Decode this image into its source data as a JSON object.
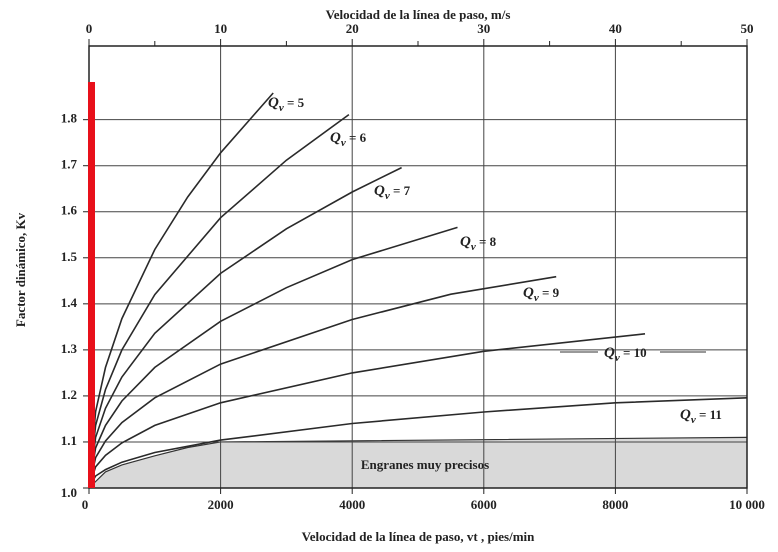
{
  "chart_data": {
    "type": "line",
    "title": "Velocidad de la línea de paso, m/s",
    "xlabel": "Velocidad de la línea de paso, vt , pies/min",
    "ylabel": "Factor dinámico, Kv",
    "xlim": [
      0,
      10000
    ],
    "xticks": [
      0,
      2000,
      4000,
      6000,
      8000,
      {
        "value": 10000,
        "label": "10 000"
      }
    ],
    "x2lim": [
      0,
      50
    ],
    "x2ticks": [
      0,
      10,
      20,
      30,
      40,
      50
    ],
    "x2minor": [
      5,
      15,
      25,
      35,
      45
    ],
    "ylim": [
      1.0,
      1.96
    ],
    "yticks": [
      1.0,
      1.1,
      1.2,
      1.3,
      1.4,
      1.5,
      1.6,
      1.7,
      1.8
    ],
    "grid": true,
    "series": [
      {
        "name": "Qv = 5",
        "color": "#2a2a2a",
        "x": [
          0,
          100,
          250,
          500,
          1000,
          1500,
          2000,
          2800
        ],
        "values": [
          1.0,
          1.166,
          1.262,
          1.368,
          1.518,
          1.632,
          1.728,
          1.858
        ]
      },
      {
        "name": "Qv = 6",
        "color": "#2a2a2a",
        "x": [
          0,
          100,
          250,
          500,
          1000,
          2000,
          3000,
          3950
        ],
        "values": [
          1.0,
          1.136,
          1.214,
          1.3,
          1.42,
          1.587,
          1.712,
          1.811
        ]
      },
      {
        "name": "Qv = 7",
        "color": "#2a2a2a",
        "x": [
          0,
          100,
          250,
          500,
          1000,
          2000,
          3000,
          4000,
          4750
        ],
        "values": [
          1.0,
          1.11,
          1.173,
          1.241,
          1.336,
          1.466,
          1.563,
          1.643,
          1.696
        ]
      },
      {
        "name": "Qv = 8",
        "color": "#2a2a2a",
        "x": [
          0,
          100,
          250,
          500,
          1000,
          2000,
          3000,
          4000,
          5600
        ],
        "values": [
          1.0,
          1.087,
          1.136,
          1.189,
          1.262,
          1.362,
          1.435,
          1.496,
          1.566
        ]
      },
      {
        "name": "Qv = 9",
        "color": "#2a2a2a",
        "x": [
          0,
          100,
          250,
          500,
          1000,
          2000,
          4000,
          5500,
          7100
        ],
        "values": [
          1.0,
          1.066,
          1.102,
          1.142,
          1.196,
          1.269,
          1.366,
          1.421,
          1.459
        ]
      },
      {
        "name": "Qv = 10",
        "color": "#2a2a2a",
        "x": [
          0,
          100,
          250,
          500,
          1000,
          2000,
          4000,
          6000,
          8450
        ],
        "values": [
          1.0,
          1.046,
          1.071,
          1.098,
          1.136,
          1.185,
          1.25,
          1.297,
          1.335
        ]
      },
      {
        "name": "Qv = 11",
        "color": "#2a2a2a",
        "x": [
          0,
          100,
          250,
          500,
          1000,
          2000,
          4000,
          6000,
          8000,
          10000
        ],
        "values": [
          1.0,
          1.026,
          1.04,
          1.056,
          1.077,
          1.104,
          1.14,
          1.165,
          1.185,
          1.196
        ]
      }
    ],
    "region": {
      "label": "Engranes muy precisos",
      "color": "#d9d9d9",
      "x": [
        0,
        250,
        500,
        1000,
        1500,
        2000,
        10000
      ],
      "values": [
        1.0,
        1.035,
        1.05,
        1.07,
        1.088,
        1.1,
        1.11
      ]
    }
  }
}
